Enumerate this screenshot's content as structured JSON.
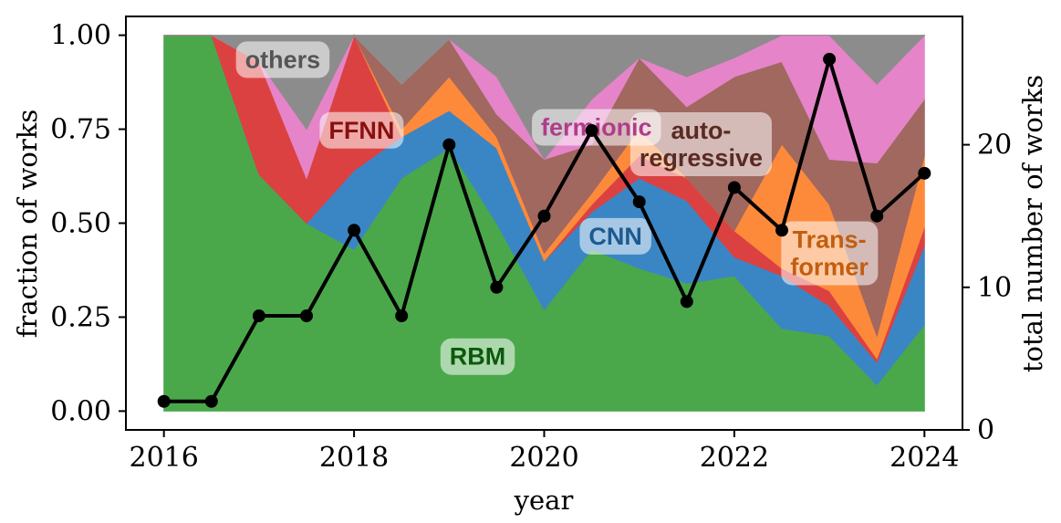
{
  "chart_data": {
    "type": "area",
    "stacked": true,
    "normalized": true,
    "xlabel": "year",
    "ylabel": "fraction of works",
    "y2label": "total number of works",
    "xlim": [
      2015.6,
      2024.4
    ],
    "ylim": [
      -0.05,
      1.05
    ],
    "y2lim": [
      0,
      29
    ],
    "xticks": [
      2016,
      2018,
      2020,
      2022,
      2024
    ],
    "xtick_labels": [
      "2016",
      "2018",
      "2020",
      "2022",
      "2024"
    ],
    "yticks": [
      0,
      0.25,
      0.5,
      0.75,
      1.0
    ],
    "ytick_labels": [
      "0.00",
      "0.25",
      "0.50",
      "0.75",
      "1.00"
    ],
    "y2ticks": [
      0,
      10,
      20
    ],
    "y2tick_labels": [
      "0",
      "10",
      "20"
    ],
    "grid": false,
    "x": [
      2016,
      2016.5,
      2017,
      2017.5,
      2018,
      2018.5,
      2019,
      2019.5,
      2020,
      2020.5,
      2021,
      2021.5,
      2022,
      2022.5,
      2023,
      2023.5,
      2024
    ],
    "series": [
      {
        "name": "RBM",
        "color": "#4aa84a",
        "label_color": "#0b5a0b",
        "values": [
          1.0,
          1.0,
          0.63,
          0.5,
          0.43,
          0.62,
          0.7,
          0.5,
          0.27,
          0.43,
          0.38,
          0.34,
          0.36,
          0.22,
          0.2,
          0.07,
          0.23
        ]
      },
      {
        "name": "CNN",
        "color": "#3a86c4",
        "label_color": "#1c5a90",
        "values": [
          0,
          0,
          0,
          0,
          0.21,
          0.11,
          0.1,
          0.2,
          0.13,
          0.1,
          0.24,
          0.22,
          0.05,
          0.14,
          0.08,
          0.06,
          0.21
        ]
      },
      {
        "name": "FFNN",
        "color": "#dc4141",
        "label_color": "#8a1010",
        "values": [
          0,
          0,
          0.3,
          0.12,
          0.36,
          0,
          0,
          0,
          0,
          0.02,
          0.06,
          0.06,
          0.07,
          0.02,
          0.04,
          0.01,
          0.05
        ]
      },
      {
        "name": "Trans-\nformer",
        "color": "#fd8a3b",
        "label_color": "#c25e10",
        "values": [
          0,
          0,
          0,
          0,
          0,
          0.02,
          0.09,
          0.03,
          0.02,
          0.03,
          0.07,
          0,
          0,
          0.33,
          0.23,
          0.06,
          0.19
        ]
      },
      {
        "name": "auto-\nregressive",
        "color": "#a0685f",
        "label_color": "#5a2a24",
        "values": [
          0,
          0,
          0,
          0,
          0,
          0.12,
          0.1,
          0.06,
          0.25,
          0.13,
          0.19,
          0.19,
          0.41,
          0.22,
          0.12,
          0.46,
          0.15
        ]
      },
      {
        "name": "fermionic",
        "color": "#e584c8",
        "label_color": "#b03c8c",
        "values": [
          0,
          0,
          0,
          0.13,
          0,
          0,
          0,
          0.1,
          0,
          0.12,
          0,
          0.08,
          0.05,
          0.07,
          0.33,
          0.21,
          0.17
        ]
      },
      {
        "name": "others",
        "color": "#8c8c8c",
        "label_color": "#555555",
        "values": [
          0,
          0,
          0.07,
          0.25,
          0,
          0.13,
          0.01,
          0.11,
          0.33,
          0.17,
          0.06,
          0.11,
          0.06,
          0,
          0,
          0.13,
          0
        ]
      }
    ],
    "total_works": {
      "color": "#000000",
      "values": [
        2,
        2,
        8,
        8,
        14,
        8,
        20,
        10,
        15,
        21,
        16,
        9,
        17,
        14,
        26,
        15,
        18
      ]
    }
  }
}
